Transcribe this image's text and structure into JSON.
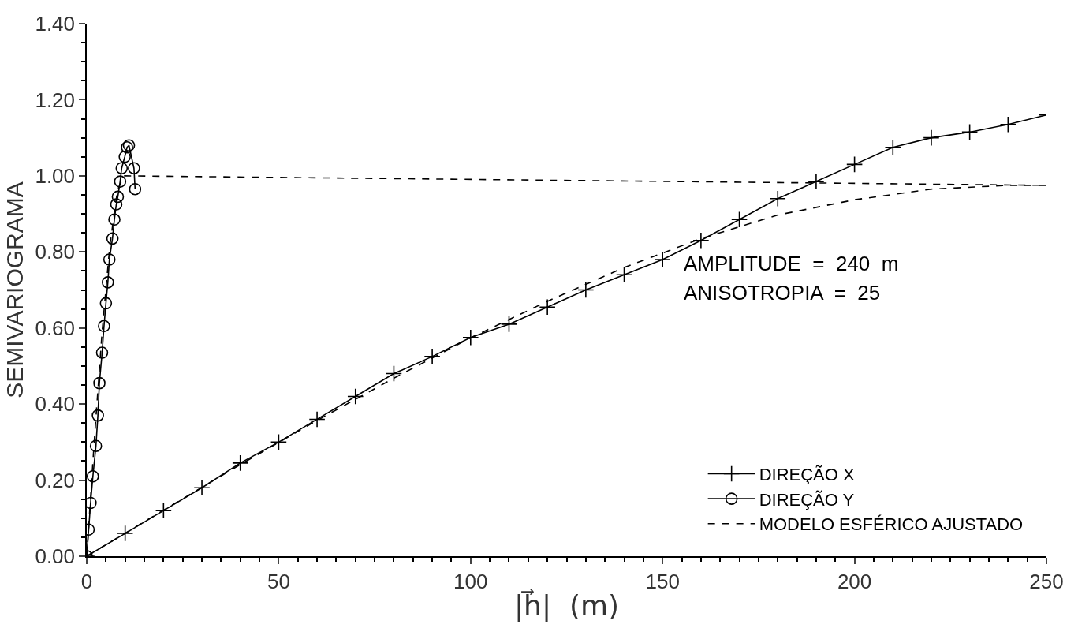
{
  "chart_data": {
    "type": "line",
    "xlabel": "|h⃗|  (m)",
    "ylabel": "SEMIVARIOGRAMA",
    "xlim": [
      0,
      250
    ],
    "xticks": [
      0,
      50,
      100,
      150,
      200,
      250
    ],
    "ylim": [
      0,
      1.4
    ],
    "yticks": [
      {
        "value": 0,
        "label": "0.00"
      },
      {
        "value": 0.2,
        "label": "0.20"
      },
      {
        "value": 0.4,
        "label": "0.40"
      },
      {
        "value": 0.6,
        "label": "0.60"
      },
      {
        "value": 0.8,
        "label": "0.80"
      },
      {
        "value": 1.0,
        "label": "1.00"
      },
      {
        "value": 1.2,
        "label": "1.20"
      },
      {
        "value": 1.4,
        "label": "1.40"
      }
    ],
    "legend": "bottom right",
    "annotations": [
      "AMPLITUDE  =  240  m",
      "ANISOTROPIA  =  25"
    ],
    "series": [
      {
        "name": "DIREÇÃO X",
        "color": "#000000",
        "marker": "cross",
        "line_style": "solid",
        "x": [
          0,
          10,
          20,
          30,
          40,
          50,
          60,
          70,
          80,
          90,
          100,
          110,
          120,
          130,
          140,
          150,
          160,
          170,
          180,
          190,
          200,
          210,
          220,
          230,
          240,
          250
        ],
        "values": [
          0,
          0.06,
          0.12,
          0.18,
          0.245,
          0.3,
          0.36,
          0.42,
          0.48,
          0.525,
          0.575,
          0.61,
          0.655,
          0.7,
          0.74,
          0.78,
          0.83,
          0.885,
          0.94,
          0.985,
          1.03,
          1.075,
          1.1,
          1.115,
          1.135,
          1.16
        ]
      },
      {
        "name": "DIREÇÃO Y",
        "color": "#000000",
        "marker": "circle",
        "line_style": "solid",
        "x": [
          0,
          0.5,
          1,
          1.6,
          2.4,
          2.9,
          3.3,
          4,
          4.5,
          5,
          5.5,
          5.9,
          6.7,
          7.2,
          7.7,
          8.1,
          8.7,
          9.1,
          9.9,
          10.5,
          11,
          12.3,
          12.6
        ],
        "values": [
          0,
          0.07,
          0.14,
          0.21,
          0.29,
          0.37,
          0.455,
          0.535,
          0.605,
          0.665,
          0.72,
          0.78,
          0.835,
          0.885,
          0.925,
          0.945,
          0.985,
          1.02,
          1.05,
          1.075,
          1.08,
          1.02,
          0.965
        ]
      },
      {
        "name": "MODELO ESFÉRICO AJUSTADO",
        "color": "#000000",
        "marker": "none",
        "line_style": "dashed",
        "x": [
          0,
          20,
          40,
          60,
          80,
          100,
          120,
          140,
          160,
          180,
          200,
          220,
          240,
          250
        ],
        "values": [
          0,
          0.121,
          0.241,
          0.357,
          0.468,
          0.574,
          0.67,
          0.759,
          0.835,
          0.897,
          0.937,
          0.965,
          0.975,
          0.975
        ]
      },
      {
        "color": "#000000",
        "marker": "none",
        "line_style": "dashed",
        "x": [
          0,
          2,
          4,
          6,
          8,
          9.6,
          250
        ],
        "values": [
          0,
          0.309,
          0.589,
          0.815,
          0.961,
          1.0,
          0.975
        ]
      }
    ]
  }
}
